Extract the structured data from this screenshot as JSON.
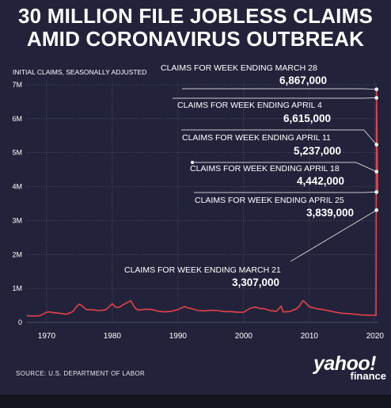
{
  "headline": {
    "line1": "30 MILLION FILE JOBLESS CLAIMS",
    "line2": "AMID CORONAVIRUS OUTBREAK"
  },
  "source": "SOURCE:  U.S. DEPARTMENT OF LABOR",
  "logo": {
    "word": "yahoo!",
    "sub": "finance"
  },
  "colors": {
    "background": "#22233a",
    "line": "#e8414a",
    "grid": "#8a8aa0",
    "text": "#ffffff"
  },
  "chart_data": {
    "type": "line",
    "ylabel": "INITIAL CLAIMS, SEASONALLY ADJUSTED",
    "xlim": [
      1967,
      2020.5
    ],
    "ylim": [
      0,
      7000000
    ],
    "x_ticks": [
      {
        "value": 1970,
        "label": "1970"
      },
      {
        "value": 1980,
        "label": "1980"
      },
      {
        "value": 1990,
        "label": "1990"
      },
      {
        "value": 2000,
        "label": "2000"
      },
      {
        "value": 2010,
        "label": "2010"
      },
      {
        "value": 2020,
        "label": "2020"
      }
    ],
    "y_ticks": [
      {
        "value": 0,
        "label": "0"
      },
      {
        "value": 1000000,
        "label": "1M"
      },
      {
        "value": 2000000,
        "label": "2M"
      },
      {
        "value": 3000000,
        "label": "3M"
      },
      {
        "value": 4000000,
        "label": "4M"
      },
      {
        "value": 5000000,
        "label": "5M"
      },
      {
        "value": 6000000,
        "label": "6M"
      },
      {
        "value": 7000000,
        "label": "7M"
      }
    ],
    "grid": true,
    "series": [
      {
        "x": [
          1967,
          1968,
          1969,
          1970,
          1970.5,
          1971,
          1972,
          1973,
          1974,
          1974.5,
          1975,
          1975.5,
          1976,
          1977,
          1978,
          1979,
          1980,
          1980.5,
          1981,
          1982,
          1982.8,
          1983.5,
          1984,
          1985,
          1986,
          1987,
          1988,
          1989,
          1990,
          1991,
          1991.5,
          1992,
          1993,
          1994,
          1995,
          1996,
          1997,
          1998,
          1999,
          2000,
          2001,
          2001.8,
          2002.5,
          2003,
          2004,
          2005,
          2005.7,
          2006,
          2007,
          2008,
          2008.5,
          2009,
          2009.3,
          2010,
          2011,
          2012,
          2013,
          2014,
          2015,
          2016,
          2017,
          2018,
          2019,
          2020,
          2020.15
        ],
        "y": [
          200000,
          190000,
          200000,
          300000,
          310000,
          290000,
          270000,
          240000,
          320000,
          450000,
          540000,
          470000,
          380000,
          370000,
          350000,
          370000,
          550000,
          450000,
          440000,
          560000,
          640000,
          420000,
          360000,
          390000,
          380000,
          330000,
          310000,
          330000,
          380000,
          470000,
          430000,
          410000,
          350000,
          340000,
          360000,
          350000,
          320000,
          320000,
          300000,
          300000,
          420000,
          450000,
          410000,
          410000,
          350000,
          330000,
          480000,
          310000,
          320000,
          400000,
          480000,
          640000,
          600000,
          460000,
          410000,
          380000,
          340000,
          300000,
          270000,
          260000,
          240000,
          220000,
          215000,
          210000,
          211000
        ]
      }
    ],
    "recent_weeks": [
      {
        "date": "2020-03-21",
        "label": "CLAIMS FOR WEEK ENDING MARCH 21",
        "value_text": "3,307,000",
        "value": 3307000
      },
      {
        "date": "2020-03-28",
        "label": "CLAIMS FOR WEEK ENDING MARCH 28",
        "value_text": "6,867,000",
        "value": 6867000
      },
      {
        "date": "2020-04-04",
        "label": "CLAIMS FOR WEEK ENDING APRIL 4",
        "value_text": "6,615,000",
        "value": 6615000
      },
      {
        "date": "2020-04-11",
        "label": "CLAIMS FOR WEEK ENDING APRIL 11",
        "value_text": "5,237,000",
        "value": 5237000
      },
      {
        "date": "2020-04-18",
        "label": "CLAIMS FOR WEEK ENDING APRIL 18",
        "value_text": "4,442,000",
        "value": 4442000
      },
      {
        "date": "2020-04-25",
        "label": "CLAIMS FOR WEEK ENDING APRIL 25",
        "value_text": "3,839,000",
        "value": 3839000
      }
    ]
  }
}
